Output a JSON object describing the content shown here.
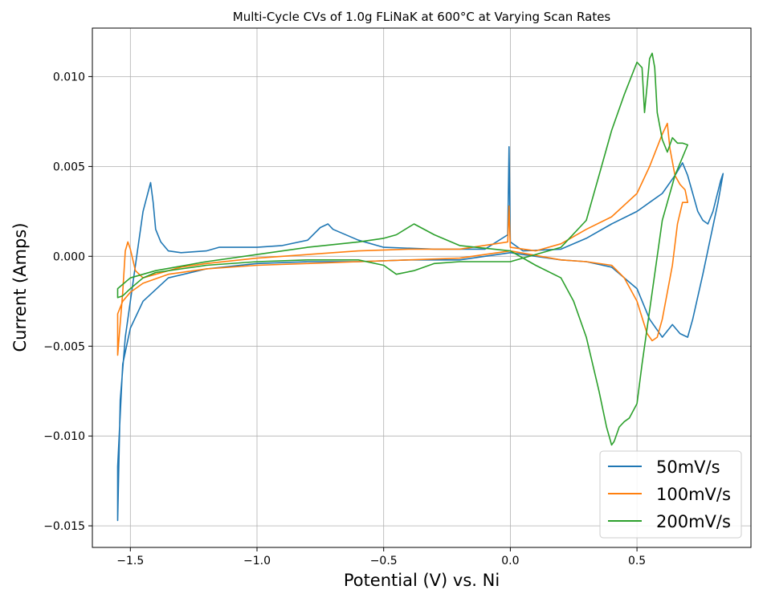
{
  "chart_data": {
    "type": "line",
    "title": "Multi-Cycle CVs of 1.0g FLiNaK at 600°C at Varying Scan Rates",
    "xlabel": "Potential (V) vs. Ni",
    "ylabel": "Current (Amps)",
    "xlim": [
      -1.65,
      0.95
    ],
    "ylim": [
      -0.0162,
      0.0127
    ],
    "xticks": [
      -1.5,
      -1.0,
      -0.5,
      0.0,
      0.5
    ],
    "xtick_labels": [
      "−1.5",
      "−1.0",
      "−0.5",
      "0.0",
      "0.5"
    ],
    "yticks": [
      0.01,
      0.005,
      0.0,
      -0.005,
      -0.01,
      -0.015
    ],
    "ytick_labels": [
      "0.010",
      "0.005",
      "0.000",
      "−0.005",
      "−0.010",
      "−0.015"
    ],
    "grid": true,
    "legend_position": "bottom-right",
    "series": [
      {
        "name": "50mV/s",
        "color": "#1f77b4",
        "x": [
          0.0,
          -0.2,
          -0.4,
          -0.6,
          -0.8,
          -1.0,
          -1.2,
          -1.35,
          -1.45,
          -1.5,
          -1.53,
          -1.55,
          -1.55,
          -1.54,
          -1.52,
          -1.5,
          -1.45,
          -1.42,
          -1.41,
          -1.4,
          -1.38,
          -1.35,
          -1.3,
          -1.2,
          -1.15,
          -1.0,
          -0.9,
          -0.8,
          -0.75,
          -0.72,
          -0.7,
          -0.6,
          -0.5,
          -0.3,
          -0.1,
          -0.01,
          -0.005,
          0.0,
          0.05,
          0.2,
          0.3,
          0.4,
          0.5,
          0.55,
          0.6,
          0.65,
          0.68,
          0.7,
          0.72,
          0.74,
          0.76,
          0.78,
          0.8,
          0.83,
          0.84,
          0.82,
          0.79,
          0.76,
          0.72,
          0.7,
          0.67,
          0.64,
          0.6,
          0.55,
          0.5,
          0.4,
          0.3,
          0.2,
          0.0
        ],
        "y": [
          0.0002,
          -0.0002,
          -0.0002,
          -0.0003,
          -0.0003,
          -0.0004,
          -0.0007,
          -0.0012,
          -0.0025,
          -0.004,
          -0.006,
          -0.0117,
          -0.0147,
          -0.008,
          -0.0045,
          -0.0025,
          0.0025,
          0.0041,
          0.003,
          0.0015,
          0.0008,
          0.0003,
          0.0002,
          0.0003,
          0.0005,
          0.0005,
          0.0006,
          0.0009,
          0.0016,
          0.0018,
          0.0015,
          0.0009,
          0.0005,
          0.0004,
          0.0004,
          0.0012,
          0.0061,
          0.0008,
          0.0003,
          0.0004,
          0.001,
          0.0018,
          0.0025,
          0.003,
          0.0035,
          0.0045,
          0.0052,
          0.0045,
          0.0035,
          0.0025,
          0.002,
          0.0018,
          0.0025,
          0.0042,
          0.0046,
          0.003,
          0.001,
          -0.001,
          -0.0035,
          -0.0045,
          -0.0043,
          -0.0038,
          -0.0045,
          -0.0035,
          -0.0018,
          -0.0006,
          -0.0003,
          -0.0002,
          0.0002
        ]
      },
      {
        "name": "100mV/s",
        "color": "#ff7f0e",
        "x": [
          0.0,
          -0.2,
          -0.4,
          -0.6,
          -0.8,
          -1.0,
          -1.2,
          -1.35,
          -1.45,
          -1.5,
          -1.53,
          -1.55,
          -1.55,
          -1.53,
          -1.52,
          -1.51,
          -1.5,
          -1.48,
          -1.45,
          -1.4,
          -1.3,
          -1.2,
          -1.0,
          -0.8,
          -0.6,
          -0.4,
          -0.2,
          -0.01,
          -0.005,
          0.0,
          0.1,
          0.2,
          0.3,
          0.4,
          0.5,
          0.55,
          0.6,
          0.62,
          0.63,
          0.65,
          0.67,
          0.69,
          0.7,
          0.68,
          0.66,
          0.64,
          0.62,
          0.6,
          0.58,
          0.56,
          0.54,
          0.5,
          0.45,
          0.4,
          0.3,
          0.2,
          0.0
        ],
        "y": [
          0.0003,
          -0.0001,
          -0.0002,
          -0.0003,
          -0.0004,
          -0.0005,
          -0.0007,
          -0.001,
          -0.0015,
          -0.002,
          -0.0025,
          -0.0032,
          -0.0055,
          -0.002,
          0.0003,
          0.0008,
          0.0004,
          -0.0008,
          -0.0012,
          -0.001,
          -0.0006,
          -0.0004,
          -0.0001,
          0.0001,
          0.0003,
          0.0004,
          0.0004,
          0.0008,
          0.0028,
          0.0005,
          0.0003,
          0.0007,
          0.0015,
          0.0022,
          0.0035,
          0.005,
          0.0068,
          0.0074,
          0.006,
          0.0045,
          0.004,
          0.0037,
          0.003,
          0.003,
          0.0018,
          -0.0005,
          -0.002,
          -0.0035,
          -0.0045,
          -0.0047,
          -0.0043,
          -0.0025,
          -0.0012,
          -0.0005,
          -0.0003,
          -0.0002,
          0.0003
        ]
      },
      {
        "name": "200mV/s",
        "color": "#2ca02c",
        "x": [
          0.0,
          -0.2,
          -0.3,
          -0.38,
          -0.45,
          -0.5,
          -0.6,
          -0.8,
          -1.0,
          -1.2,
          -1.4,
          -1.5,
          -1.55,
          -1.55,
          -1.53,
          -1.5,
          -1.45,
          -1.4,
          -1.3,
          -1.2,
          -1.0,
          -0.8,
          -0.6,
          -0.5,
          -0.45,
          -0.38,
          -0.3,
          -0.2,
          0.0,
          0.2,
          0.3,
          0.35,
          0.4,
          0.45,
          0.5,
          0.52,
          0.53,
          0.54,
          0.55,
          0.56,
          0.57,
          0.58,
          0.6,
          0.62,
          0.64,
          0.66,
          0.68,
          0.7,
          0.65,
          0.6,
          0.56,
          0.52,
          0.5,
          0.47,
          0.45,
          0.43,
          0.41,
          0.4,
          0.38,
          0.35,
          0.3,
          0.25,
          0.2,
          0.1,
          0.0
        ],
        "y": [
          0.0003,
          0.0006,
          0.0012,
          0.0018,
          0.0012,
          0.001,
          0.0008,
          0.0005,
          0.0001,
          -0.0003,
          -0.0008,
          -0.0012,
          -0.0018,
          -0.0023,
          -0.0022,
          -0.0018,
          -0.0012,
          -0.0009,
          -0.0007,
          -0.0005,
          -0.0003,
          -0.0002,
          -0.0002,
          -0.0005,
          -0.001,
          -0.0008,
          -0.0004,
          -0.0003,
          -0.0003,
          0.0005,
          0.002,
          0.0045,
          0.007,
          0.009,
          0.0108,
          0.0105,
          0.008,
          0.0095,
          0.011,
          0.0113,
          0.0105,
          0.008,
          0.0065,
          0.0058,
          0.0066,
          0.0063,
          0.0063,
          0.0062,
          0.0045,
          0.002,
          -0.002,
          -0.006,
          -0.0082,
          -0.009,
          -0.0092,
          -0.0095,
          -0.0103,
          -0.0105,
          -0.0095,
          -0.0075,
          -0.0045,
          -0.0025,
          -0.0012,
          -0.0005,
          0.0003
        ]
      }
    ]
  }
}
